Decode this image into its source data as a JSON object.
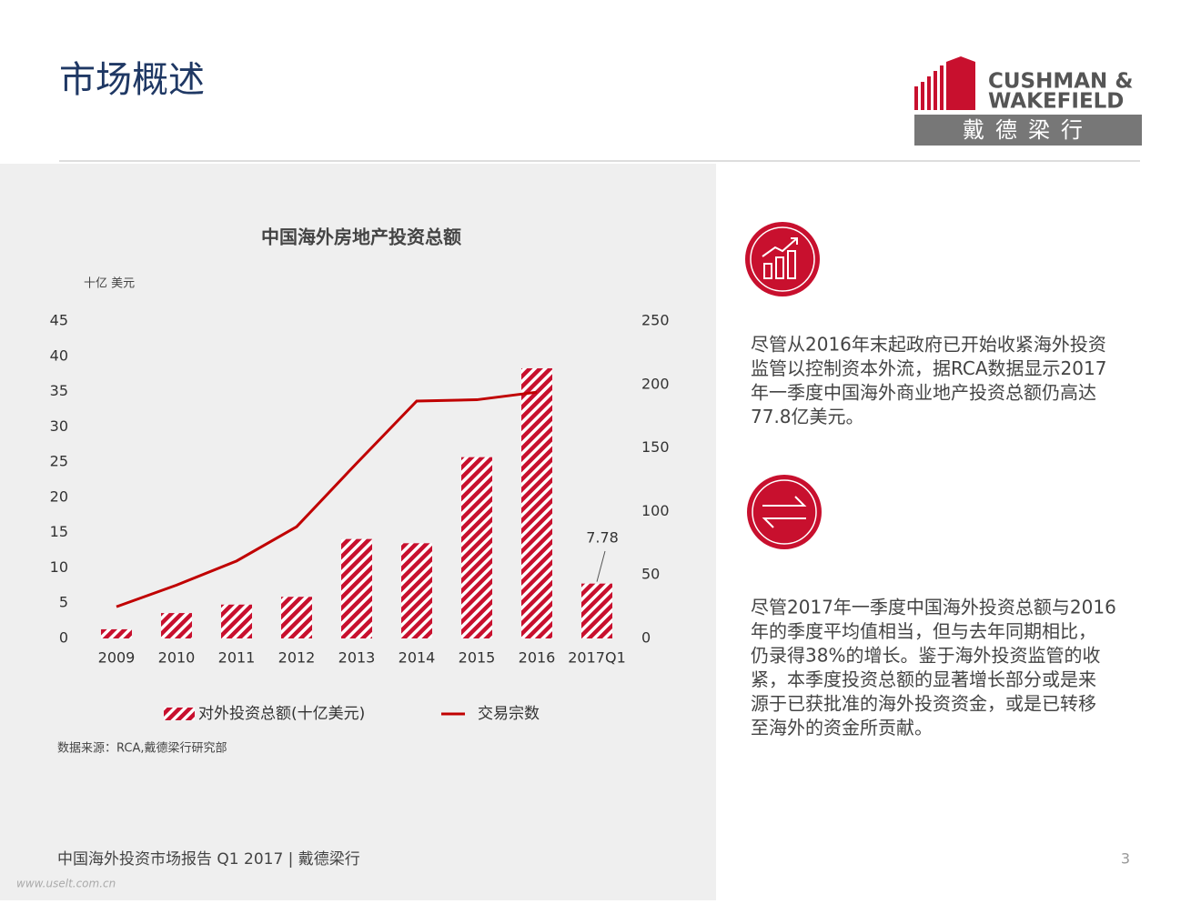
{
  "header": {
    "title": "市场概述",
    "logo": {
      "line1": "CUSHMAN &",
      "line2": "WAKEFIELD",
      "chinese": "戴德梁行"
    }
  },
  "chart_data": {
    "type": "bar-line",
    "title": "中国海外房地产投资总额",
    "y_label": "十亿 美元",
    "categories": [
      "2009",
      "2010",
      "2011",
      "2012",
      "2013",
      "2014",
      "2015",
      "2016",
      "2017Q1"
    ],
    "series": [
      {
        "name": "对外投资总额(十亿美元)",
        "color": "#c8102e",
        "type": "bar",
        "values": [
          1.3,
          3.6,
          4.8,
          5.9,
          14.1,
          13.5,
          25.7,
          38.3,
          7.78
        ]
      },
      {
        "name": "交易宗数",
        "color": "#c00000",
        "type": "line",
        "axis": "y2",
        "values": [
          25,
          42,
          61,
          88,
          138,
          187,
          188,
          194,
          null
        ]
      }
    ],
    "ylim": [
      0,
      45
    ],
    "yticks": [
      0,
      5,
      10,
      15,
      20,
      25,
      30,
      35,
      40,
      45
    ],
    "y2lim": [
      0,
      250
    ],
    "y2ticks": [
      0,
      50,
      100,
      150,
      200,
      250
    ],
    "grid": false,
    "legend": "bottom",
    "labeled_index": 8,
    "source": "数据来源：RCA,戴德梁行研究部"
  },
  "paragraphs": [
    [
      "尽管从2016年末起政府已开始收紧海外投资",
      "监管以控制资本外流，据RCA数据显示2017",
      "年一季度中国海外商业地产投资总额仍高达",
      "77.8亿美元。"
    ],
    [
      "尽管2017年一季度中国海外投资总额与2016",
      "年的季度平均值相当，但与去年同期相比，",
      "仍录得38%的增长。鉴于海外投资监管的收",
      "紧，本季度投资总额的显著增长部分或是来",
      "源于已获批准的海外投资资金，或是已转移",
      "至海外的资金所贡献。"
    ]
  ],
  "footer": {
    "text": "中国海外投资市场报告  Q1 2017 | 戴德梁行",
    "page": "3",
    "watermark": "www.uselt.com.cn"
  }
}
